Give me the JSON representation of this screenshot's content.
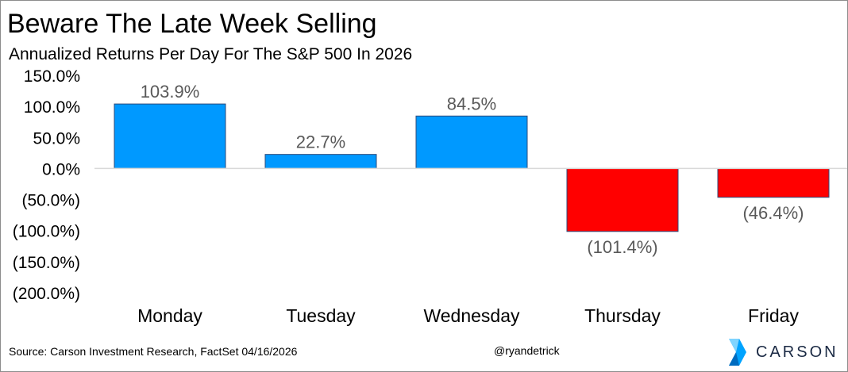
{
  "header": {
    "title": "Beware The Late Week Selling",
    "subtitle": "Annualized Returns Per Day For The S&P 500 In 2026"
  },
  "chart_data": {
    "type": "bar",
    "categories": [
      "Monday",
      "Tuesday",
      "Wednesday",
      "Thursday",
      "Friday"
    ],
    "values": [
      103.9,
      22.7,
      84.5,
      -101.4,
      -46.4
    ],
    "data_labels": [
      "103.9%",
      "22.7%",
      "84.5%",
      "(101.4%)",
      "(46.4%)"
    ],
    "ylim": [
      -200,
      150
    ],
    "yticks": [
      150,
      100,
      50,
      0,
      -50,
      -100,
      -150,
      -200
    ],
    "ytick_labels": [
      "150.0%",
      "100.0%",
      "50.0%",
      "0.0%",
      "(50.0%)",
      "(100.0%)",
      "(150.0%)",
      "(200.0%)"
    ],
    "grid": false,
    "legend": "none",
    "colors": {
      "positive": "#0099ff",
      "negative": "#ff0000",
      "axis": "#d9d9d9",
      "label": "#595959"
    }
  },
  "footer": {
    "source": "Source: Carson Investment Research, FactSet 04/16/2026",
    "handle": "@ryandetrick",
    "brand": "CARSON",
    "brand_icon": "carson-chevron-logo"
  }
}
